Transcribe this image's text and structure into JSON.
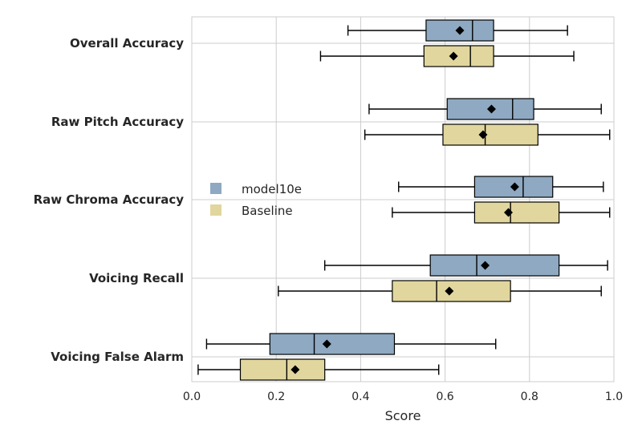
{
  "chart_data": {
    "type": "boxplot",
    "orientation": "horizontal",
    "xlabel": "Score",
    "xlim": [
      0.0,
      1.0
    ],
    "xticks": [
      "0.0",
      "0.2",
      "0.4",
      "0.6",
      "0.8",
      "1.0"
    ],
    "grid": true,
    "legend_position": "center-left",
    "categories": [
      "Overall Accuracy",
      "Raw Pitch Accuracy",
      "Raw Chroma Accuracy",
      "Voicing Recall",
      "Voicing False Alarm"
    ],
    "series": [
      {
        "name": "model10e",
        "color": "#8ea9c1",
        "boxes": [
          {
            "whislo": 0.37,
            "q1": 0.555,
            "median": 0.665,
            "q3": 0.715,
            "whishi": 0.89,
            "mean": 0.635
          },
          {
            "whislo": 0.42,
            "q1": 0.605,
            "median": 0.76,
            "q3": 0.81,
            "whishi": 0.97,
            "mean": 0.71
          },
          {
            "whislo": 0.49,
            "q1": 0.67,
            "median": 0.785,
            "q3": 0.855,
            "whishi": 0.975,
            "mean": 0.765
          },
          {
            "whislo": 0.315,
            "q1": 0.565,
            "median": 0.675,
            "q3": 0.87,
            "whishi": 0.985,
            "mean": 0.695
          },
          {
            "whislo": 0.035,
            "q1": 0.185,
            "median": 0.29,
            "q3": 0.48,
            "whishi": 0.72,
            "mean": 0.32
          }
        ]
      },
      {
        "name": "Baseline",
        "color": "#e1d69d",
        "boxes": [
          {
            "whislo": 0.305,
            "q1": 0.55,
            "median": 0.66,
            "q3": 0.715,
            "whishi": 0.905,
            "mean": 0.62
          },
          {
            "whislo": 0.41,
            "q1": 0.595,
            "median": 0.695,
            "q3": 0.82,
            "whishi": 0.99,
            "mean": 0.69
          },
          {
            "whislo": 0.475,
            "q1": 0.67,
            "median": 0.755,
            "q3": 0.87,
            "whishi": 0.99,
            "mean": 0.75
          },
          {
            "whislo": 0.205,
            "q1": 0.475,
            "median": 0.58,
            "q3": 0.755,
            "whishi": 0.97,
            "mean": 0.61
          },
          {
            "whislo": 0.015,
            "q1": 0.115,
            "median": 0.225,
            "q3": 0.315,
            "whishi": 0.585,
            "mean": 0.245
          }
        ]
      }
    ]
  }
}
